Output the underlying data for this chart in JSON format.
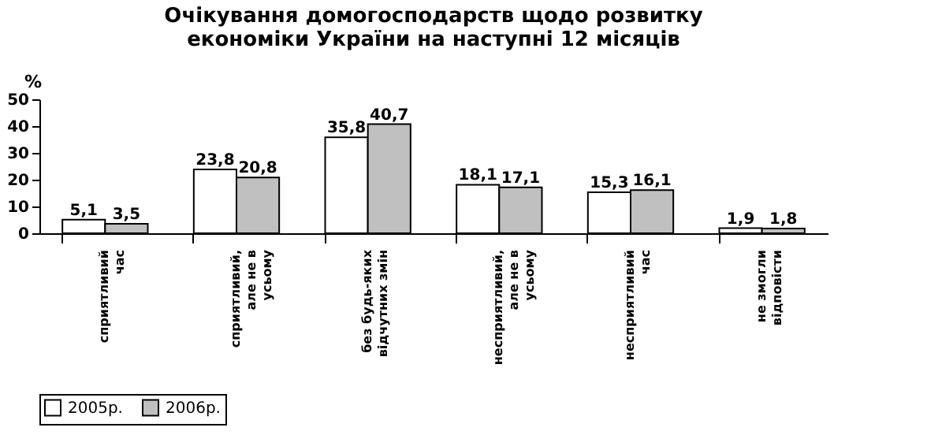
{
  "chart_data": {
    "type": "bar",
    "title": [
      "Очікування домогосподарств щодо розвитку",
      "економіки України на наступні 12 місяців"
    ],
    "ylabel": "%",
    "categories": [
      "сприятливий\nчас",
      "сприятливий,\nале не в\nусьому",
      "без будь-яких\nвідчутних змін",
      "несприятливий,\nале не в\nусьому",
      "несприятливий\nчас",
      "не змогли\nвідповісти"
    ],
    "series": [
      {
        "name": "2005р.",
        "color": "#ffffff",
        "values": [
          5.1,
          23.8,
          35.8,
          18.1,
          15.3,
          1.9
        ],
        "value_labels": [
          "5,1",
          "23,8",
          "35,8",
          "18,1",
          "15,3",
          "1,9"
        ]
      },
      {
        "name": "2006р.",
        "color": "#c0c0c0",
        "values": [
          3.5,
          20.8,
          40.7,
          17.1,
          16.1,
          1.8
        ],
        "value_labels": [
          "3,5",
          "20,8",
          "40,7",
          "17,1",
          "16,1",
          "1,8"
        ]
      }
    ],
    "ylim": [
      0,
      50
    ],
    "yticks": [
      0,
      10,
      20,
      30,
      40,
      50
    ],
    "grid": false,
    "legend": "bottom"
  }
}
